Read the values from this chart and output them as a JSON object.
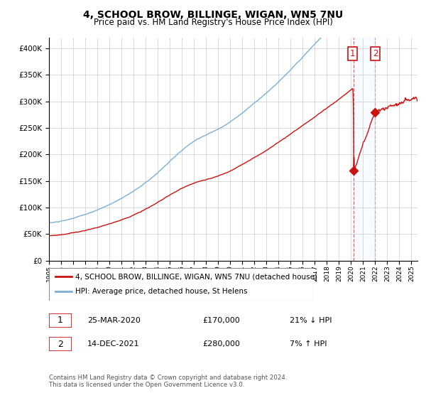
{
  "title": "4, SCHOOL BROW, BILLINGE, WIGAN, WN5 7NU",
  "subtitle": "Price paid vs. HM Land Registry's House Price Index (HPI)",
  "yticks": [
    0,
    50000,
    100000,
    150000,
    200000,
    250000,
    300000,
    350000,
    400000
  ],
  "ytick_labels": [
    "£0",
    "£50K",
    "£100K",
    "£150K",
    "£200K",
    "£250K",
    "£300K",
    "£350K",
    "£400K"
  ],
  "xlim_start": 1995.0,
  "xlim_end": 2025.5,
  "ylim": [
    0,
    420000
  ],
  "hpi_color": "#7bafd4",
  "price_color": "#cc1111",
  "marker1_year": 2020.23,
  "marker1_price": 170000,
  "marker2_year": 2021.95,
  "marker2_price": 280000,
  "legend_line1": "4, SCHOOL BROW, BILLINGE, WIGAN, WN5 7NU (detached house)",
  "legend_line2": "HPI: Average price, detached house, St Helens",
  "table_row1": [
    "1",
    "25-MAR-2020",
    "£170,000",
    "21% ↓ HPI"
  ],
  "table_row2": [
    "2",
    "14-DEC-2021",
    "£280,000",
    "7% ↑ HPI"
  ],
  "footnote": "Contains HM Land Registry data © Crown copyright and database right 2024.\nThis data is licensed under the Open Government Licence v3.0.",
  "background_color": "#ffffff",
  "grid_color": "#cccccc",
  "shade_color": "#ddeeff"
}
